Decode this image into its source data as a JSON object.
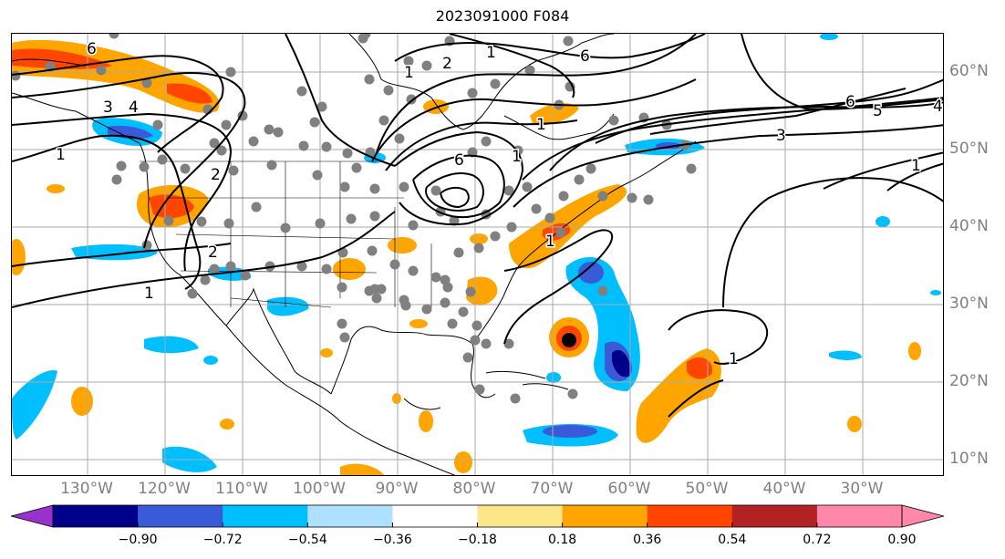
{
  "title": "2023091000 F084",
  "axes": {
    "lon_labels": [
      "130°W",
      "120°W",
      "110°W",
      "100°W",
      "90°W",
      "80°W",
      "70°W",
      "60°W",
      "50°W",
      "40°W",
      "30°W"
    ],
    "lat_labels": [
      "60°N",
      "50°N",
      "40°N",
      "30°N",
      "20°N",
      "10°N"
    ]
  },
  "colorbar": {
    "colors": [
      "#9932cc",
      "#00008b",
      "#3a5bd9",
      "#00bfff",
      "#b0e0ff",
      "#ffffff",
      "#fde68a",
      "#ffa500",
      "#ff4500",
      "#b22222",
      "#ff88aa"
    ],
    "tick_labels": [
      "−0.90",
      "−0.72",
      "−0.54",
      "−0.36",
      "−0.18",
      "0.18",
      "0.36",
      "0.54",
      "0.72",
      "0.90"
    ],
    "extend": "both"
  },
  "contour_labels": [
    "6",
    "6",
    "4",
    "3",
    "2",
    "1",
    "2",
    "1",
    "1",
    "1",
    "2",
    "6",
    "1",
    "1",
    "1",
    "6",
    "5",
    "4",
    "3",
    "1",
    "1"
  ],
  "colors": {
    "contour": "#000000",
    "grid": "#aaaaaa",
    "coast": "#000000",
    "station": "#808080",
    "axis_label": "#808080"
  }
}
